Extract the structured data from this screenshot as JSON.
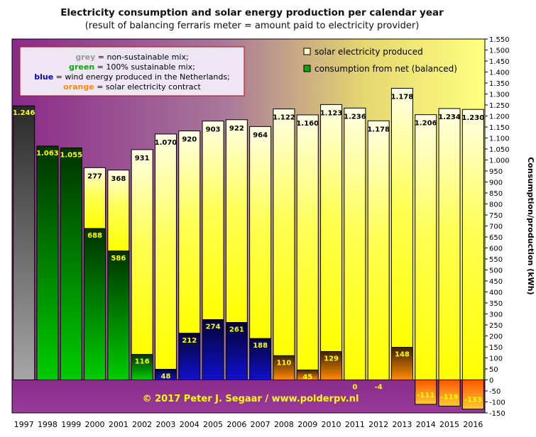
{
  "chart_data": {
    "type": "bar",
    "title": "Electricity consumption and solar energy production per calendar year",
    "subtitle": "(result of balancing ferraris meter = amount paid to electricity provider)",
    "ylabel": "Consumption/production (kWh)",
    "ylim": [
      -150,
      1550
    ],
    "ytick_step": 50,
    "grid": false,
    "legend_position": "top-right",
    "copyright": "© 2017 Peter J. Segaar / www.polderpv.nl",
    "categories": [
      "1997",
      "1998",
      "1999",
      "2000",
      "2001",
      "2002",
      "2003",
      "2004",
      "2005",
      "2006",
      "2007",
      "2008",
      "2009",
      "2010",
      "2011",
      "2012",
      "2013",
      "2014",
      "2015",
      "2016"
    ],
    "series": [
      {
        "name": "solar electricity produced",
        "color": "#ffff66",
        "values": [
          null,
          null,
          null,
          277,
          368,
          931,
          1070,
          920,
          903,
          922,
          964,
          1122,
          1160,
          1123,
          1236,
          1178,
          1178,
          1206,
          1234,
          1230
        ]
      },
      {
        "name": "consumption from net (balanced)",
        "color": "#009900",
        "values": [
          1246,
          1063,
          1055,
          688,
          586,
          116,
          48,
          212,
          274,
          261,
          188,
          110,
          45,
          129,
          0,
          -4,
          148,
          -111,
          -119,
          -133
        ]
      }
    ],
    "mix": [
      "grey",
      "green",
      "green",
      "green",
      "green",
      "green",
      "blue",
      "blue",
      "blue",
      "blue",
      "blue",
      "orange",
      "orange",
      "orange",
      "orange",
      "orange",
      "orange",
      "orange",
      "orange",
      "orange"
    ],
    "mix_colors": {
      "grey": "#a6a6a6",
      "green": "#00cc00",
      "blue": "#1010d0",
      "orange": "#ff8c00"
    },
    "mix_legend": [
      {
        "key": "grey",
        "word": "grey",
        "rest": " = non-sustainable mix;",
        "color": "#999999"
      },
      {
        "key": "green",
        "word": "green",
        "rest": " = 100%  sustainable mix;",
        "color": "#00aa00"
      },
      {
        "key": "blue",
        "word": "blue",
        "rest": " = wind energy produced in the Netherlands;",
        "color": "#0000cc"
      },
      {
        "key": "orange",
        "word": "orange",
        "rest": " = solar electricity contract",
        "color": "#ff8c00"
      }
    ]
  }
}
